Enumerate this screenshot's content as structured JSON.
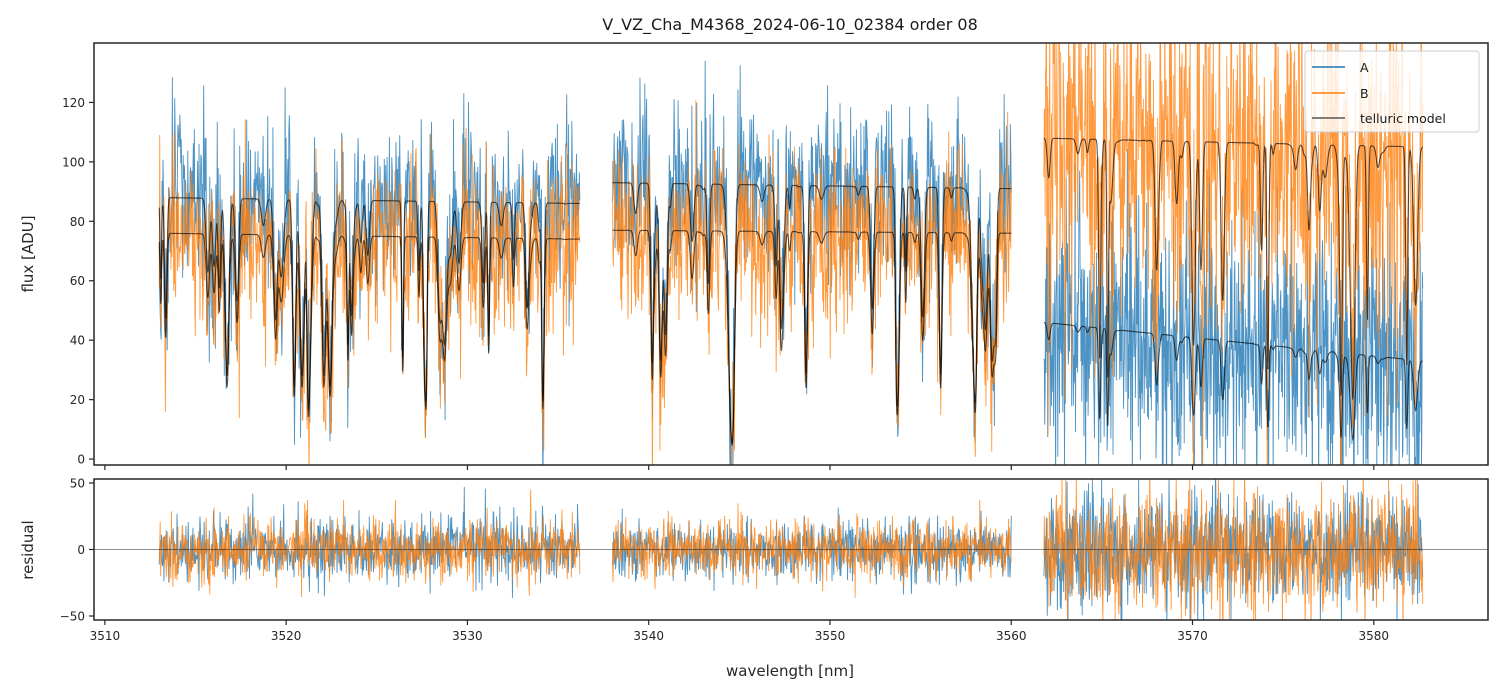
{
  "chart_data": [
    {
      "panel": "top",
      "type": "line",
      "title": "V_VZ_Cha_M4368_2024-06-10_02384  order 08",
      "xlabel": "",
      "ylabel": "flux [ADU]",
      "xlim": [
        3509.4,
        3586.3
      ],
      "ylim": [
        -2,
        140
      ],
      "yticks": [
        0,
        20,
        40,
        60,
        80,
        100,
        120
      ],
      "ytick_labels": [
        "0",
        "20",
        "40",
        "60",
        "80",
        "100",
        "120"
      ],
      "xticks": [
        3510,
        3520,
        3530,
        3540,
        3550,
        3560,
        3570,
        3580
      ],
      "grid": false,
      "legend": {
        "placement": "top-right",
        "entries": [
          {
            "label": "A",
            "color": "#1f77b4"
          },
          {
            "label": "B",
            "color": "#ff7f0e"
          },
          {
            "label": "telluric model",
            "color": "#555555"
          }
        ]
      },
      "segments": [
        {
          "x_range": [
            3513.0,
            3536.2
          ],
          "A_level": [
            88,
            86
          ],
          "B_level": [
            76,
            74
          ],
          "A_noise": 14,
          "B_noise": 14
        },
        {
          "x_range": [
            3538.0,
            3560.0
          ],
          "A_level": [
            93,
            91
          ],
          "B_level": [
            77,
            76
          ],
          "A_noise": 14,
          "B_noise": 14
        },
        {
          "x_range": [
            3561.8,
            3582.7
          ],
          "A_level": [
            46,
            33
          ],
          "B_level": [
            108,
            105
          ],
          "A_noise": 22,
          "B_noise": 30
        }
      ],
      "series": [
        {
          "name": "A",
          "color": "#1f77b4",
          "description": "observed flux nod A, ~85-93 ADU in first two segments, ~30-48 ADU in third segment"
        },
        {
          "name": "B",
          "color": "#ff7f0e",
          "description": "observed flux nod B, ~75-80 ADU in first two segments, ~100-110 ADU in third segment"
        },
        {
          "name": "telluric model",
          "color": "#555555",
          "description": "model continuum with many absorption lines, one curve per nod"
        }
      ]
    },
    {
      "panel": "bottom",
      "type": "line",
      "title": "",
      "xlabel": "wavelength [nm]",
      "ylabel": "residual",
      "xlim": [
        3509.4,
        3586.3
      ],
      "ylim": [
        -53,
        53
      ],
      "yticks": [
        -50,
        0,
        50
      ],
      "ytick_labels": [
        "−50",
        "0",
        "50"
      ],
      "xticks": [
        3510,
        3520,
        3530,
        3540,
        3550,
        3560,
        3570,
        3580
      ],
      "xtick_labels": [
        "3510",
        "3520",
        "3530",
        "3540",
        "3550",
        "3560",
        "3570",
        "3580"
      ],
      "hline": 0,
      "grid": false,
      "segments": [
        {
          "x_range": [
            3513.0,
            3536.2
          ],
          "noise_sigma": 12
        },
        {
          "x_range": [
            3538.0,
            3560.0
          ],
          "noise_sigma": 11
        },
        {
          "x_range": [
            3561.8,
            3582.7
          ],
          "noise_sigma": 22
        }
      ],
      "series": [
        {
          "name": "A",
          "color": "#1f77b4"
        },
        {
          "name": "B",
          "color": "#ff7f0e"
        }
      ]
    }
  ]
}
